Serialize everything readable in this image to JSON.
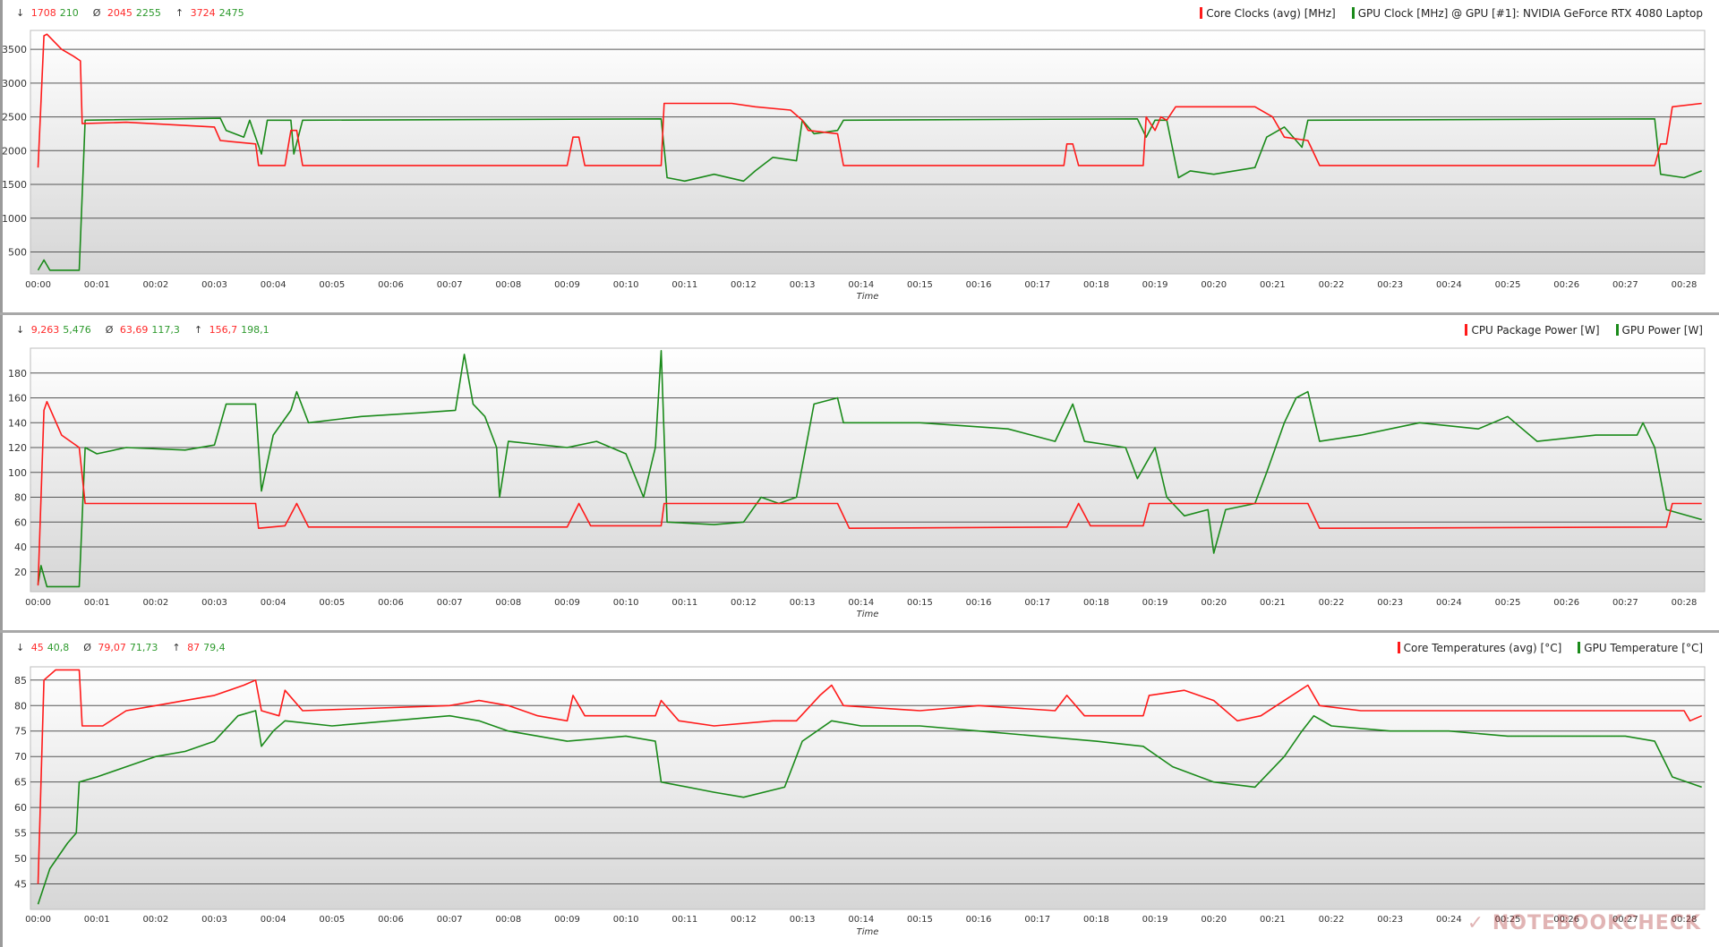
{
  "colors": {
    "cpu": "#ff1a1a",
    "gpu": "#1a8a1a"
  },
  "x_ticks": [
    "00:00",
    "00:01",
    "00:02",
    "00:03",
    "00:04",
    "00:05",
    "00:06",
    "00:07",
    "00:08",
    "00:09",
    "00:10",
    "00:11",
    "00:12",
    "00:13",
    "00:14",
    "00:15",
    "00:16",
    "00:17",
    "00:18",
    "00:19",
    "00:20",
    "00:21",
    "00:22",
    "00:23",
    "00:24",
    "00:25",
    "00:26",
    "00:27",
    "00:28"
  ],
  "watermark": "NOTEBOOKCHECK",
  "chart_data": [
    {
      "type": "line",
      "xlabel": "Time",
      "xlim": [
        -0.13,
        28.35
      ],
      "ylim": [
        175,
        3780
      ],
      "y_ticks": [
        500,
        1000,
        1500,
        2000,
        2500,
        3000,
        3500
      ],
      "grid": true,
      "legend": "top-right",
      "stats": {
        "min": [
          "1708",
          "210"
        ],
        "avg": [
          "2045",
          "2255"
        ],
        "max": [
          "3724",
          "2475"
        ]
      },
      "series": [
        {
          "name": "Core Clocks (avg) [MHz]",
          "color": "#ff1a1a",
          "x": [
            0,
            0.1,
            0.15,
            0.4,
            0.6,
            0.72,
            0.75,
            1.5,
            3.0,
            3.1,
            3.7,
            3.75,
            4.2,
            4.3,
            4.4,
            4.5,
            9.0,
            9.1,
            9.2,
            9.3,
            10.6,
            10.65,
            11.8,
            12.2,
            12.8,
            13.0,
            13.1,
            13.6,
            13.7,
            17.45,
            17.5,
            17.6,
            17.7,
            18.8,
            18.85,
            19.0,
            19.1,
            19.2,
            19.35,
            20.7,
            21.0,
            21.2,
            21.6,
            21.8,
            27.5,
            27.6,
            27.7,
            27.8,
            28.3
          ],
          "y": [
            1750,
            3700,
            3724,
            3500,
            3400,
            3330,
            2400,
            2420,
            2350,
            2150,
            2100,
            1780,
            1780,
            2300,
            2300,
            1780,
            1780,
            2200,
            2200,
            1780,
            1780,
            2700,
            2700,
            2650,
            2600,
            2450,
            2300,
            2250,
            1780,
            1780,
            2100,
            2100,
            1780,
            1780,
            2500,
            2300,
            2500,
            2450,
            2650,
            2650,
            2500,
            2200,
            2150,
            1780,
            1780,
            2100,
            2100,
            2650,
            2700
          ]
        },
        {
          "name": "GPU Clock [MHz] @ GPU [#1]: NVIDIA GeForce RTX 4080 Laptop",
          "color": "#1a8a1a",
          "x": [
            0,
            0.1,
            0.2,
            0.7,
            0.8,
            3.1,
            3.2,
            3.5,
            3.6,
            3.8,
            3.9,
            4.3,
            4.35,
            4.5,
            10.6,
            10.7,
            11.0,
            11.5,
            12.0,
            12.2,
            12.5,
            12.9,
            13.0,
            13.2,
            13.6,
            13.7,
            18.7,
            18.85,
            19.0,
            19.2,
            19.4,
            19.6,
            20.0,
            20.7,
            20.9,
            21.2,
            21.5,
            21.6,
            27.5,
            27.6,
            28.0,
            28.3
          ],
          "y": [
            230,
            380,
            230,
            230,
            2450,
            2480,
            2300,
            2200,
            2450,
            1950,
            2450,
            2450,
            1950,
            2450,
            2470,
            1600,
            1550,
            1650,
            1550,
            1700,
            1900,
            1850,
            2450,
            2250,
            2300,
            2450,
            2470,
            2200,
            2450,
            2450,
            1600,
            1700,
            1650,
            1750,
            2200,
            2350,
            2050,
            2450,
            2470,
            1650,
            1600,
            1700
          ]
        }
      ]
    },
    {
      "type": "line",
      "xlabel": "Time",
      "xlim": [
        -0.13,
        28.35
      ],
      "ylim": [
        4,
        200
      ],
      "y_ticks": [
        20,
        40,
        60,
        80,
        100,
        120,
        140,
        160,
        180
      ],
      "grid": true,
      "legend": "top-right",
      "stats": {
        "min": [
          "9,263",
          "5,476"
        ],
        "avg": [
          "63,69",
          "117,3"
        ],
        "max": [
          "156,7",
          "198,1"
        ]
      },
      "series": [
        {
          "name": "CPU Package Power [W]",
          "color": "#ff1a1a",
          "x": [
            0,
            0.1,
            0.15,
            0.4,
            0.7,
            0.8,
            3.7,
            3.75,
            4.2,
            4.4,
            4.6,
            9.0,
            9.2,
            9.4,
            10.6,
            10.65,
            13.6,
            13.8,
            17.5,
            17.7,
            17.9,
            18.8,
            18.9,
            21.6,
            21.8,
            27.7,
            27.8,
            28.3
          ],
          "y": [
            9,
            150,
            157,
            130,
            120,
            75,
            75,
            55,
            57,
            75,
            56,
            56,
            75,
            57,
            57,
            75,
            75,
            55,
            56,
            75,
            57,
            57,
            75,
            75,
            55,
            56,
            75,
            75
          ]
        },
        {
          "name": "GPU Power [W]",
          "color": "#1a8a1a",
          "x": [
            0,
            0.05,
            0.15,
            0.7,
            0.8,
            1.0,
            1.5,
            2.5,
            3.0,
            3.2,
            3.7,
            3.8,
            4.0,
            4.3,
            4.4,
            4.6,
            5.5,
            6.5,
            7.1,
            7.25,
            7.4,
            7.6,
            7.8,
            7.85,
            8.0,
            9.0,
            9.5,
            10.0,
            10.3,
            10.5,
            10.6,
            10.7,
            11.5,
            12.0,
            12.3,
            12.6,
            12.9,
            13.2,
            13.6,
            13.7,
            15.0,
            16.5,
            17.3,
            17.6,
            17.8,
            18.5,
            18.7,
            19.0,
            19.2,
            19.5,
            19.9,
            20.0,
            20.2,
            20.7,
            20.9,
            21.2,
            21.4,
            21.6,
            21.8,
            22.5,
            23.5,
            24.5,
            25.0,
            25.5,
            26.5,
            27.2,
            27.3,
            27.5,
            27.7,
            28.3
          ],
          "y": [
            10,
            25,
            8,
            8,
            120,
            115,
            120,
            118,
            122,
            155,
            155,
            85,
            130,
            150,
            165,
            140,
            145,
            148,
            150,
            195,
            155,
            145,
            120,
            80,
            125,
            120,
            125,
            115,
            80,
            120,
            198,
            60,
            58,
            60,
            80,
            75,
            80,
            155,
            160,
            140,
            140,
            135,
            125,
            155,
            125,
            120,
            95,
            120,
            80,
            65,
            70,
            35,
            70,
            75,
            100,
            140,
            160,
            165,
            125,
            130,
            140,
            135,
            145,
            125,
            130,
            130,
            140,
            120,
            70,
            62
          ]
        }
      ]
    },
    {
      "type": "line",
      "xlabel": "Time",
      "xlim": [
        -0.13,
        28.35
      ],
      "ylim": [
        40,
        87.6
      ],
      "y_ticks": [
        45,
        50,
        55,
        60,
        65,
        70,
        75,
        80,
        85
      ],
      "grid": true,
      "legend": "top-right",
      "stats": {
        "min": [
          "45",
          "40,8"
        ],
        "avg": [
          "79,07",
          "71,73"
        ],
        "max": [
          "87",
          "79,4"
        ]
      },
      "series": [
        {
          "name": "Core Temperatures (avg) [°C]",
          "color": "#ff1a1a",
          "x": [
            0,
            0.1,
            0.3,
            0.7,
            0.75,
            1.1,
            1.5,
            2.0,
            2.5,
            3.0,
            3.5,
            3.7,
            3.8,
            4.1,
            4.2,
            4.5,
            7.0,
            7.5,
            8.0,
            8.5,
            9.0,
            9.1,
            9.3,
            10.5,
            10.6,
            10.9,
            11.5,
            12.5,
            12.9,
            13.3,
            13.5,
            13.7,
            15.0,
            16.0,
            17.3,
            17.5,
            17.8,
            18.8,
            18.9,
            19.5,
            20.0,
            20.4,
            20.8,
            21.2,
            21.6,
            21.8,
            22.5,
            28.0,
            28.1,
            28.3
          ],
          "y": [
            45,
            85,
            87,
            87,
            76,
            76,
            79,
            80,
            81,
            82,
            84,
            85,
            79,
            78,
            83,
            79,
            80,
            81,
            80,
            78,
            77,
            82,
            78,
            78,
            81,
            77,
            76,
            77,
            77,
            82,
            84,
            80,
            79,
            80,
            79,
            82,
            78,
            78,
            82,
            83,
            81,
            77,
            78,
            81,
            84,
            80,
            79,
            79,
            77,
            78
          ]
        },
        {
          "name": "GPU Temperature [°C]",
          "color": "#1a8a1a",
          "x": [
            0,
            0.2,
            0.5,
            0.65,
            0.7,
            1.0,
            1.5,
            2.0,
            2.5,
            3.0,
            3.4,
            3.7,
            3.8,
            4.0,
            4.2,
            5.0,
            6.0,
            7.0,
            7.5,
            8.0,
            9.0,
            10.0,
            10.5,
            10.6,
            11.5,
            12.0,
            12.7,
            13.0,
            13.5,
            14.0,
            15.0,
            16.0,
            17.0,
            18.0,
            18.8,
            19.3,
            20.0,
            20.7,
            21.2,
            21.5,
            21.7,
            22.0,
            23.0,
            24.0,
            25.0,
            26.0,
            27.0,
            27.5,
            27.8,
            28.3
          ],
          "y": [
            41,
            48,
            53,
            55,
            65,
            66,
            68,
            70,
            71,
            73,
            78,
            79,
            72,
            75,
            77,
            76,
            77,
            78,
            77,
            75,
            73,
            74,
            73,
            65,
            63,
            62,
            64,
            73,
            77,
            76,
            76,
            75,
            74,
            73,
            72,
            68,
            65,
            64,
            70,
            75,
            78,
            76,
            75,
            75,
            74,
            74,
            74,
            73,
            66,
            64
          ]
        }
      ]
    }
  ]
}
